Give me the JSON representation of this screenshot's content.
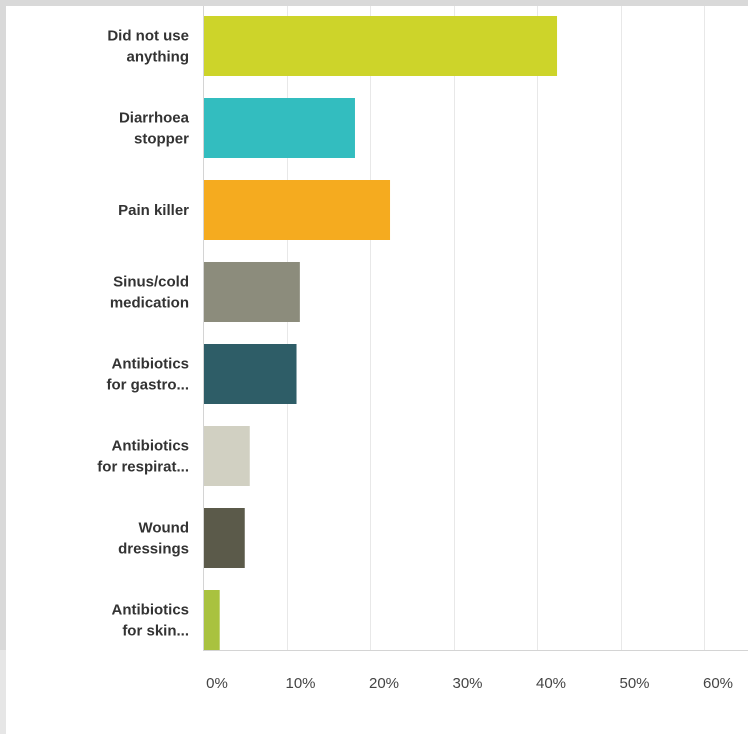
{
  "chart_data": {
    "type": "bar",
    "orientation": "horizontal",
    "categories": [
      [
        "Did not use",
        "anything"
      ],
      [
        "Diarrhoea",
        "stopper"
      ],
      [
        "Pain killer"
      ],
      [
        "Sinus/cold",
        "medication"
      ],
      [
        "Antibiotics",
        "for gastro..."
      ],
      [
        "Antibiotics",
        "for respirat..."
      ],
      [
        "Wound",
        "dressings"
      ],
      [
        "Antibiotics",
        "for skin..."
      ]
    ],
    "values": [
      42.4,
      18.2,
      22.4,
      11.6,
      11.2,
      5.6,
      5.0,
      2.0
    ],
    "colors": [
      "#cdd42a",
      "#33bdbf",
      "#f5ab1f",
      "#8c8c7c",
      "#2e5d67",
      "#d1d0c2",
      "#5b5a4a",
      "#a9c23f"
    ],
    "x_ticks": [
      "0%",
      "10%",
      "20%",
      "30%",
      "40%",
      "50%",
      "60%"
    ],
    "xlim": [
      0,
      65
    ],
    "grid": true,
    "title": "",
    "xlabel": "",
    "ylabel": ""
  }
}
